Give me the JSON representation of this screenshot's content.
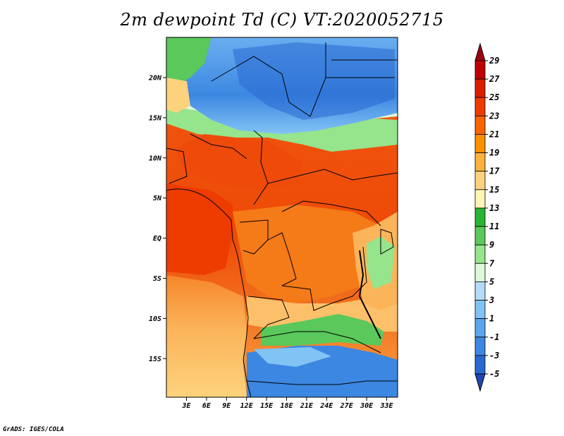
{
  "title": "2m dewpoint Td (C) VT:2020052715",
  "credit": "GrADS: IGES/COLA",
  "map": {
    "lat_labels": [
      "20N",
      "15N",
      "10N",
      "5N",
      "EQ",
      "5S",
      "10S",
      "15S"
    ],
    "lon_labels": [
      "3E",
      "6E",
      "9E",
      "12E",
      "15E",
      "18E",
      "21E",
      "24E",
      "27E",
      "30E",
      "33E"
    ]
  },
  "colorbar": {
    "labels": [
      "29",
      "27",
      "25",
      "23",
      "21",
      "19",
      "17",
      "15",
      "13",
      "11",
      "9",
      "7",
      "5",
      "3",
      "1",
      "-1",
      "-3",
      "-5"
    ],
    "colors": [
      "#9e0014",
      "#c00000",
      "#dc1e00",
      "#ee3c00",
      "#f86400",
      "#fb9000",
      "#fab23c",
      "#fdd27c",
      "#fff5b4",
      "#2ab432",
      "#5ac85a",
      "#96e48c",
      "#dcf8d8",
      "#b4dcf8",
      "#82c3f5",
      "#5aa5eb",
      "#3c87e1",
      "#2869d2",
      "#1e46b4"
    ]
  }
}
